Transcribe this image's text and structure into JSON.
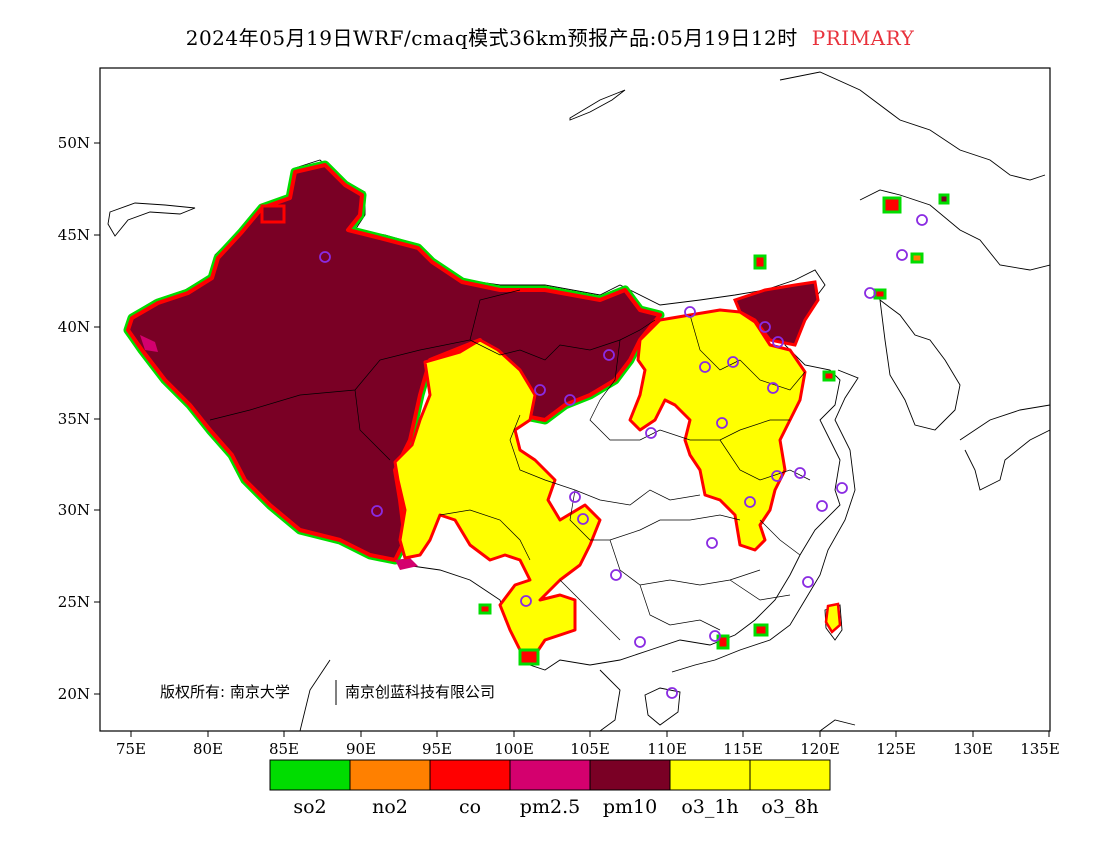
{
  "title": {
    "main": "2024年05月19日WRF/cmaq模式36km预报产品:05月19日12时",
    "tag": "PRIMARY",
    "tag_color": "#e8323c"
  },
  "axes": {
    "lon_ticks": [
      "75E",
      "80E",
      "85E",
      "90E",
      "95E",
      "100E",
      "105E",
      "110E",
      "115E",
      "120E",
      "125E",
      "130E",
      "135E"
    ],
    "lat_ticks": [
      "20N",
      "25N",
      "30N",
      "35N",
      "40N",
      "45N",
      "50N"
    ]
  },
  "copyright": {
    "left": "版权所有: 南京大学",
    "right": "南京创蓝科技有限公司"
  },
  "legend": [
    {
      "label": "so2",
      "color": "#00dd00"
    },
    {
      "label": "no2",
      "color": "#ff8000"
    },
    {
      "label": "co",
      "color": "#ff0000"
    },
    {
      "label": "pm2.5",
      "color": "#d4006e"
    },
    {
      "label": "pm10",
      "color": "#7a0025"
    },
    {
      "label": "o3_1h",
      "color": "#ffff00"
    },
    {
      "label": "o3_8h",
      "color": "#ffff00"
    }
  ],
  "colors": {
    "pm10": "#7a0025",
    "o3": "#ffff00",
    "co_edge": "#ff0000",
    "so2_edge": "#00dd00",
    "station": "#8a2be2"
  }
}
